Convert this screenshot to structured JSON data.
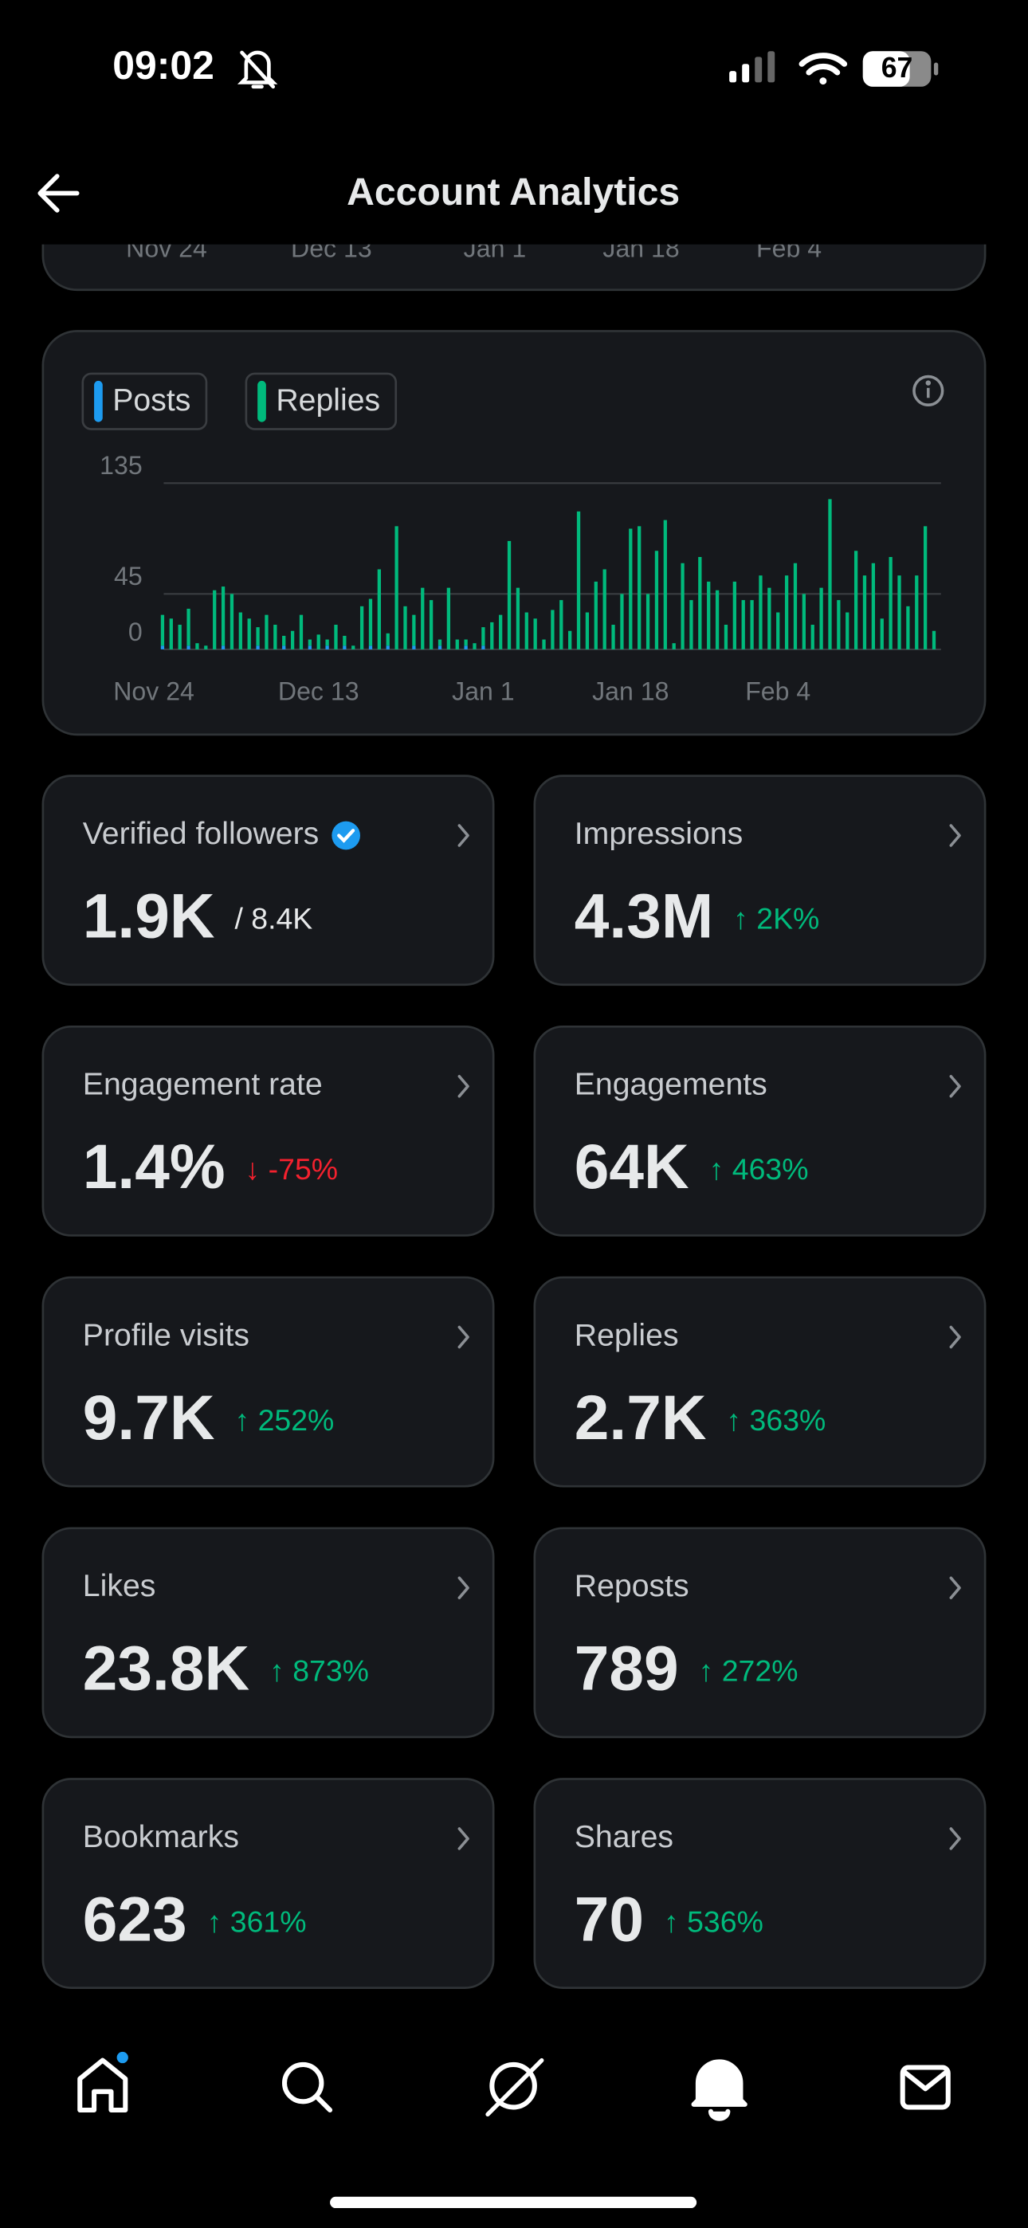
{
  "status_bar": {
    "time": "09:02",
    "battery": "67"
  },
  "header": {
    "title": "Account Analytics"
  },
  "previous_chart": {
    "x_labels": [
      "Nov 24",
      "Dec 13",
      "Jan 1",
      "Jan 18",
      "Feb 4"
    ]
  },
  "chart_data": {
    "type": "bar",
    "stacked": true,
    "grid": true,
    "categories": [
      "Nov 24",
      null,
      null,
      null,
      null,
      null,
      null,
      null,
      null,
      null,
      null,
      null,
      null,
      null,
      null,
      null,
      null,
      null,
      null,
      "Dec 13",
      null,
      null,
      null,
      null,
      null,
      null,
      null,
      null,
      null,
      null,
      null,
      null,
      null,
      null,
      null,
      null,
      null,
      null,
      "Jan 1",
      null,
      null,
      null,
      null,
      null,
      null,
      null,
      null,
      null,
      null,
      null,
      null,
      null,
      null,
      null,
      null,
      "Jan 18",
      null,
      null,
      null,
      null,
      null,
      null,
      null,
      null,
      null,
      null,
      null,
      null,
      null,
      null,
      null,
      null,
      "Feb 4",
      null,
      null,
      null,
      null,
      null,
      null,
      null,
      null,
      null,
      null,
      null,
      null,
      null,
      null,
      null,
      null,
      null,
      null
    ],
    "series": [
      {
        "name": "Posts",
        "color": "#1d9bf0",
        "values": [
          0,
          3,
          0,
          0,
          3,
          0,
          0,
          0,
          3,
          0,
          0,
          0,
          3,
          0,
          0,
          3,
          0,
          0,
          3,
          0,
          3,
          0,
          3,
          0,
          0,
          3,
          0,
          3,
          0,
          0,
          3,
          0,
          0,
          3,
          0,
          0,
          3,
          0,
          3,
          0,
          0,
          0,
          0,
          0,
          0,
          0,
          0,
          0,
          0,
          0,
          0,
          0,
          0,
          0,
          0,
          0,
          0,
          0,
          0,
          0,
          0,
          0,
          0,
          0,
          0,
          0,
          0,
          0,
          0,
          0,
          0,
          0,
          0,
          0,
          0,
          0,
          0,
          0,
          0,
          0,
          0,
          0,
          0,
          0,
          0,
          0,
          0,
          0,
          0,
          0,
          0
        ]
      },
      {
        "name": "Replies",
        "color": "#00ba7c",
        "values": [
          0,
          25,
          25,
          20,
          30,
          5,
          3,
          48,
          48,
          45,
          30,
          25,
          15,
          28,
          20,
          8,
          15,
          28,
          5,
          12,
          5,
          20,
          8,
          3,
          35,
          38,
          65,
          10,
          100,
          35,
          25,
          50,
          40,
          5,
          50,
          8,
          5,
          5,
          15,
          22,
          28,
          88,
          50,
          30,
          25,
          8,
          32,
          40,
          15,
          112,
          30,
          55,
          65,
          20,
          45,
          98,
          100,
          45,
          80,
          105,
          5,
          70,
          40,
          75,
          55,
          48,
          20,
          55,
          40,
          40,
          60,
          50,
          30,
          60,
          70,
          45,
          20,
          50,
          122,
          40,
          30,
          80,
          60,
          70,
          25,
          75,
          60,
          35,
          60,
          100,
          15
        ]
      }
    ],
    "ylim": [
      0,
      135
    ],
    "yticks": [
      0,
      45,
      135
    ]
  },
  "cards": [
    {
      "label": "Verified followers",
      "value": "1.9K",
      "total": "/ 8.4K"
    },
    {
      "label": "Impressions",
      "value": "4.3M",
      "change": "↑ 2K%",
      "trend": "up"
    },
    {
      "label": "Engagement rate",
      "value": "1.4%",
      "change": "↓ -75%",
      "trend": "down"
    },
    {
      "label": "Engagements",
      "value": "64K",
      "change": "↑ 463%",
      "trend": "up"
    },
    {
      "label": "Profile visits",
      "value": "9.7K",
      "change": "↑ 252%",
      "trend": "up"
    },
    {
      "label": "Replies",
      "value": "2.7K",
      "change": "↑ 363%",
      "trend": "up"
    },
    {
      "label": "Likes",
      "value": "23.8K",
      "change": "↑ 873%",
      "trend": "up"
    },
    {
      "label": "Reposts",
      "value": "789",
      "change": "↑ 272%",
      "trend": "up"
    },
    {
      "label": "Bookmarks",
      "value": "623",
      "change": "↑ 361%",
      "trend": "up"
    },
    {
      "label": "Shares",
      "value": "70",
      "change": "↑ 536%",
      "trend": "up"
    }
  ]
}
